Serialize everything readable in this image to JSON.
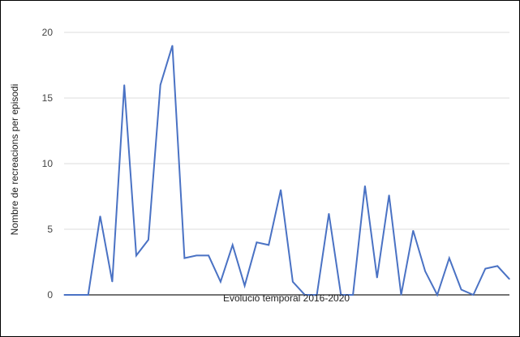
{
  "chart_data": {
    "type": "line",
    "title": "",
    "xlabel": "Evolució temporal 2016-2020",
    "ylabel": "Nombre de recreacions per  episodi",
    "ylim": [
      0,
      20
    ],
    "yticks": [
      0,
      5,
      10,
      15,
      20
    ],
    "grid": true,
    "legend": "none",
    "colors": {
      "line": "#4a72c4",
      "grid": "#dddddd",
      "baseline": "#222222"
    },
    "series": [
      {
        "values": [
          0,
          0,
          0,
          6,
          1,
          16,
          3,
          4.2,
          16,
          19,
          2.8,
          3,
          3,
          1,
          3.8,
          0.7,
          4,
          3.8,
          8,
          1,
          0,
          0,
          6.2,
          0,
          0,
          8.3,
          1.3,
          7.6,
          0,
          4.9,
          1.8,
          0,
          2.8,
          0.4,
          0,
          2,
          2.2,
          1.2
        ]
      }
    ]
  }
}
